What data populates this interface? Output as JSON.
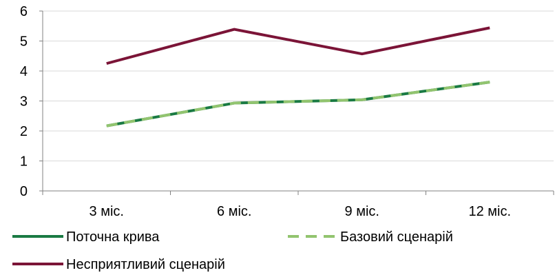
{
  "chart_data": {
    "type": "line",
    "title": "",
    "xlabel": "",
    "ylabel": "",
    "categories": [
      "3 міс.",
      "6 міс.",
      "9 міс.",
      "12 міс."
    ],
    "ylim": [
      0,
      6
    ],
    "yticks": [
      0,
      1,
      2,
      3,
      4,
      5,
      6
    ],
    "grid": "horizontal",
    "legend_position": "bottom",
    "series": [
      {
        "name": "Поточна крива",
        "values": [
          2.17,
          2.93,
          3.04,
          3.63
        ],
        "color": "#1a7a43",
        "dash": "solid"
      },
      {
        "name": "Базовий сценарій",
        "values": [
          2.17,
          2.93,
          3.04,
          3.63
        ],
        "color": "#92c46f",
        "dash": "dashed"
      },
      {
        "name": "Несприятливий сценарій",
        "values": [
          4.25,
          5.39,
          4.57,
          5.44
        ],
        "color": "#7b1437",
        "dash": "solid"
      }
    ]
  }
}
